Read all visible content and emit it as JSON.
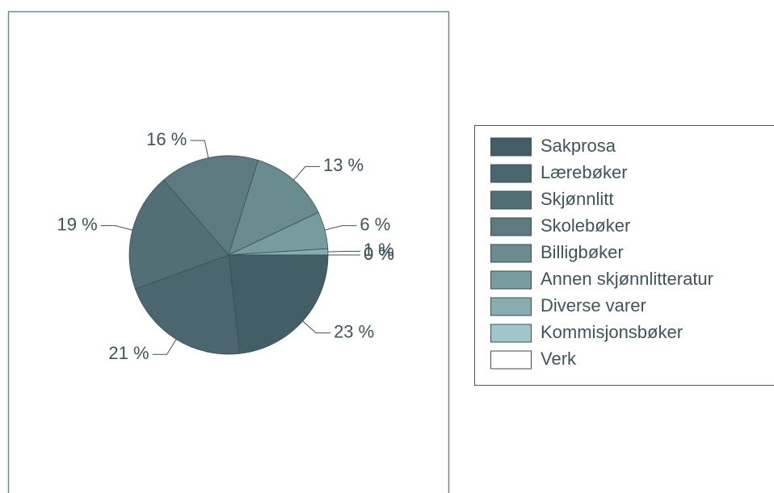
{
  "chart_data": {
    "type": "pie",
    "categories": [
      "Sakprosa",
      "Lærebøker",
      "Skjønnlitt",
      "Skolebøker",
      "Billigbøker",
      "Annen skjønnlitteratur",
      "Diverse varer",
      "Kommisjonsbøker",
      "Verk"
    ],
    "values": [
      23,
      21,
      19,
      16,
      13,
      6,
      1,
      0,
      0
    ],
    "value_labels": [
      "23 %",
      "21 %",
      "19 %",
      "16 %",
      "13 %",
      "6 %",
      "1 %",
      "0 %",
      "0 %"
    ],
    "colors": [
      "#435e67",
      "#4b666e",
      "#536f76",
      "#5c7a80",
      "#6a8b90",
      "#789ba0",
      "#88adb1",
      "#a0c6cb",
      "#ffffff"
    ],
    "legend": "right"
  }
}
